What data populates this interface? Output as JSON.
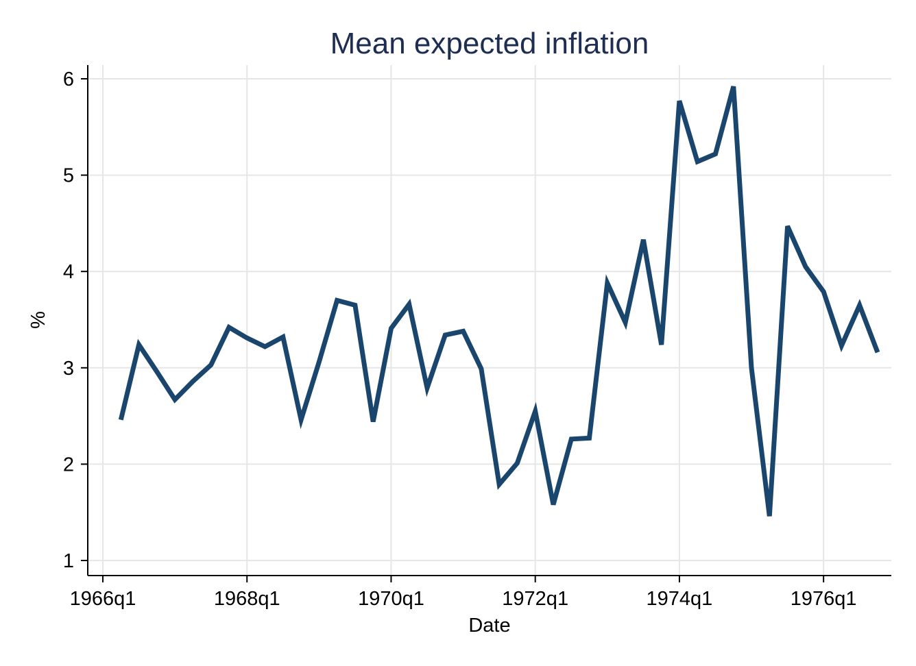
{
  "chart_data": {
    "type": "line",
    "title": "Mean expected inflation",
    "xlabel": "Date",
    "ylabel": "%",
    "xlim": [
      "1966q1",
      "1976q4"
    ],
    "ylim": [
      1,
      6
    ],
    "grid": true,
    "x_ticks": [
      "1966q1",
      "1968q1",
      "1970q1",
      "1972q1",
      "1974q1",
      "1976q1"
    ],
    "y_ticks": [
      1,
      2,
      3,
      4,
      5,
      6
    ],
    "x": [
      "1966q2",
      "1966q3",
      "1966q4",
      "1967q1",
      "1967q2",
      "1967q3",
      "1967q4",
      "1968q1",
      "1968q2",
      "1968q3",
      "1968q4",
      "1969q1",
      "1969q2",
      "1969q3",
      "1969q4",
      "1970q1",
      "1970q2",
      "1970q3",
      "1970q4",
      "1971q1",
      "1971q2",
      "1971q3",
      "1971q4",
      "1972q1",
      "1972q2",
      "1972q3",
      "1972q4",
      "1973q1",
      "1973q2",
      "1973q3",
      "1973q4",
      "1974q1",
      "1974q2",
      "1974q3",
      "1974q4",
      "1975q1",
      "1975q2",
      "1975q3",
      "1975q4",
      "1976q1",
      "1976q2",
      "1976q3",
      "1976q4"
    ],
    "series": [
      {
        "color": "#1a466e",
        "values": [
          2.46,
          3.24,
          2.96,
          2.67,
          2.86,
          3.03,
          3.42,
          3.31,
          3.22,
          3.32,
          2.46,
          3.06,
          3.7,
          3.65,
          2.44,
          3.41,
          3.66,
          2.79,
          3.34,
          3.38,
          2.99,
          1.79,
          2.01,
          2.55,
          1.58,
          2.26,
          2.27,
          3.88,
          3.47,
          4.33,
          3.24,
          5.77,
          5.14,
          5.22,
          5.92,
          3.0,
          1.46,
          4.47,
          4.05,
          3.79,
          3.23,
          3.65,
          3.16
        ]
      }
    ]
  }
}
